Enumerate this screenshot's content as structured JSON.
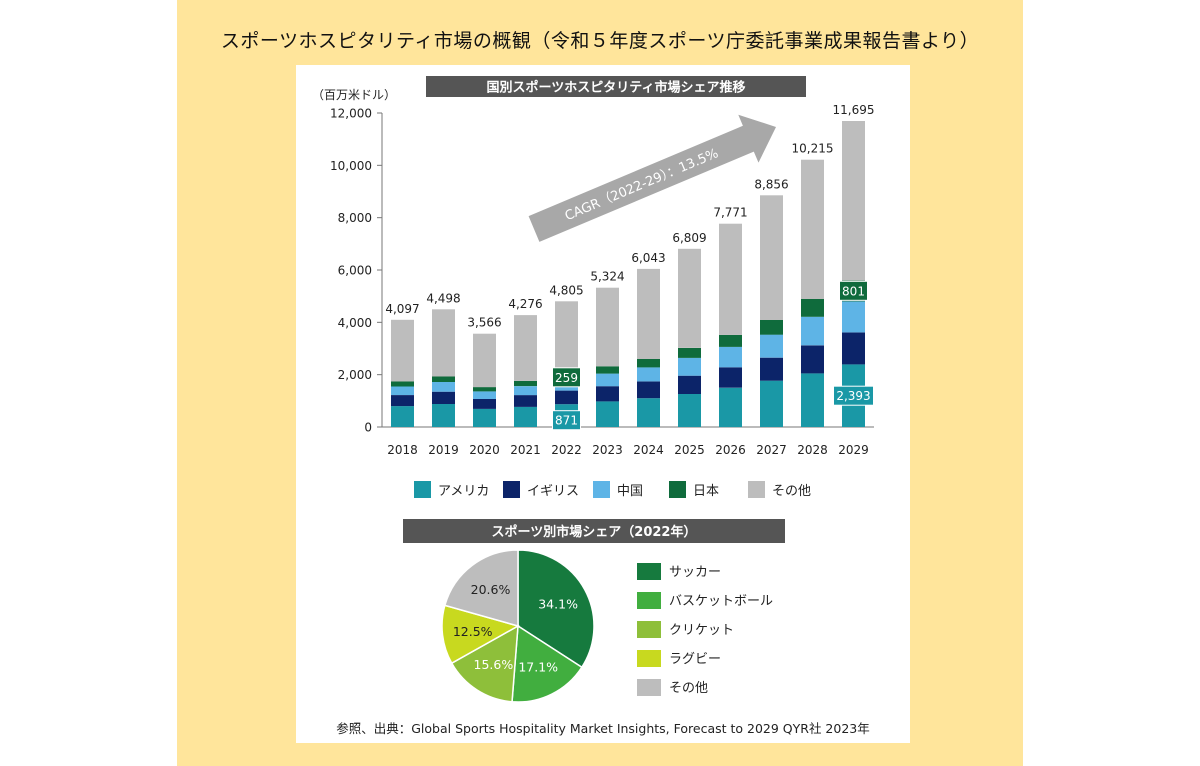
{
  "page": {
    "title": "スポーツホスピタリティ市場の概観（令和５年度スポーツ庁委託事業成果報告書より）",
    "source": "参照、出典：Global Sports Hospitality Market Insights, Forecast to 2029 QYR社 2023年"
  },
  "colors": {
    "background_panel": "#ffe59b",
    "title_bar": "#555555",
    "america": "#1a98a6",
    "uk": "#0c2469",
    "china": "#5eb4e6",
    "japan": "#0f6b3c",
    "other": "#bdbdbd",
    "soccer": "#167a3e",
    "basketball": "#41ae3f",
    "cricket": "#8ebf3a",
    "rugby": "#c8d91f",
    "other_sports": "#bdbdbd"
  },
  "chart_data": [
    {
      "type": "bar",
      "stacked": true,
      "title": "国別スポーツホスピタリティ市場シェア推移",
      "ylabel": "（百万米ドル）",
      "ylim": [
        0,
        12000
      ],
      "yticks": [
        0,
        2000,
        4000,
        6000,
        8000,
        10000,
        12000
      ],
      "ytick_labels": [
        "0",
        "2,000",
        "4,000",
        "6,000",
        "8,000",
        "10,000",
        "12,000"
      ],
      "categories": [
        "2018",
        "2019",
        "2020",
        "2021",
        "2022",
        "2023",
        "2024",
        "2025",
        "2026",
        "2027",
        "2028",
        "2029"
      ],
      "totals": [
        4097,
        4498,
        3566,
        4276,
        4805,
        5324,
        6043,
        6809,
        7771,
        8856,
        10215,
        11695
      ],
      "total_labels": [
        "4,097",
        "4,498",
        "3,566",
        "4,276",
        "4,805",
        "5,324",
        "6,043",
        "6,809",
        "7,771",
        "8,856",
        "10,215",
        "11,695"
      ],
      "series": [
        {
          "name": "アメリカ",
          "color": "#1a98a6",
          "values": [
            800,
            880,
            690,
            770,
            871,
            980,
            1100,
            1260,
            1500,
            1770,
            2050,
            2393
          ]
        },
        {
          "name": "イギリス",
          "color": "#0c2469",
          "values": [
            420,
            470,
            380,
            450,
            520,
            580,
            640,
            700,
            780,
            880,
            1070,
            1220
          ]
        },
        {
          "name": "中国",
          "color": "#5eb4e6",
          "values": [
            330,
            370,
            290,
            340,
            380,
            480,
            540,
            680,
            780,
            880,
            1090,
            1190
          ]
        },
        {
          "name": "日本",
          "color": "#0f6b3c",
          "values": [
            190,
            210,
            165,
            200,
            259,
            280,
            320,
            380,
            460,
            560,
            680,
            801
          ]
        },
        {
          "name": "その他",
          "color": "#bdbdbd",
          "values": [
            2357,
            2568,
            2041,
            2516,
            2775,
            3004,
            3443,
            3789,
            4251,
            4766,
            5325,
            6091
          ]
        }
      ],
      "data_labels": [
        {
          "series": "日本",
          "category": "2022",
          "text": "259"
        },
        {
          "series": "アメリカ",
          "category": "2022",
          "text": "871"
        },
        {
          "series": "日本",
          "category": "2029",
          "text": "801"
        },
        {
          "series": "アメリカ",
          "category": "2029",
          "text": "2,393"
        }
      ],
      "annotation": "CAGR（2022-29）：13.5%",
      "legend_position": "bottom",
      "grid": false
    },
    {
      "type": "pie",
      "title": "スポーツ別市場シェア（2022年）",
      "slices": [
        {
          "name": "サッカー",
          "value": 34.1,
          "label": "34.1%",
          "color": "#167a3e"
        },
        {
          "name": "バスケットボール",
          "value": 17.1,
          "label": "17.1%",
          "color": "#41ae3f"
        },
        {
          "name": "クリケット",
          "value": 15.6,
          "label": "15.6%",
          "color": "#8ebf3a"
        },
        {
          "name": "ラグビー",
          "value": 12.5,
          "label": "12.5%",
          "color": "#c8d91f"
        },
        {
          "name": "その他",
          "value": 20.6,
          "label": "20.6%",
          "color": "#bdbdbd"
        }
      ],
      "legend_position": "right"
    }
  ]
}
